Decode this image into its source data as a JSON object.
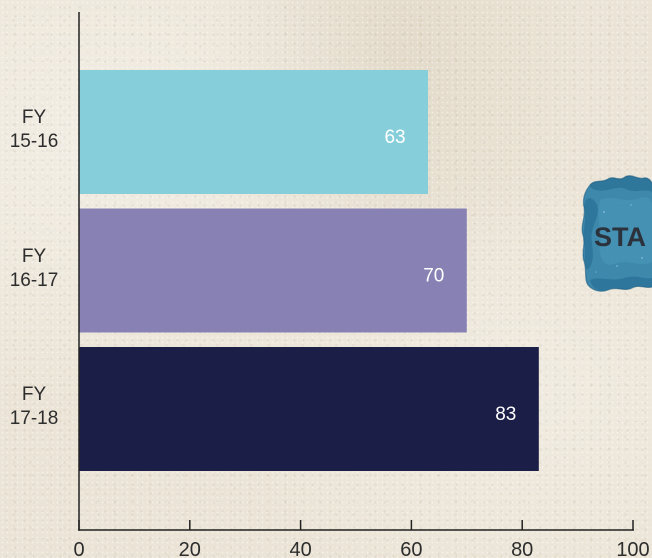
{
  "chart_data": {
    "type": "bar",
    "horizontal": true,
    "categories": [
      "FY\n15-16",
      "FY\n16-17",
      "FY\n17-18"
    ],
    "values": [
      63,
      70,
      83
    ],
    "bar_colors": [
      "#87cedb",
      "#8782b3",
      "#1b1e47"
    ],
    "value_label_color": "#ffffff",
    "xlim": [
      0,
      100
    ],
    "xticks": [
      0,
      20,
      40,
      60,
      80,
      100
    ],
    "grid": false,
    "legend": false
  },
  "side_badge": {
    "text": "STA",
    "blob_color": "#2f80a8"
  },
  "colors": {
    "background": "#ebe4d6",
    "axis": "#222222",
    "label_text": "#2d2d2d"
  }
}
